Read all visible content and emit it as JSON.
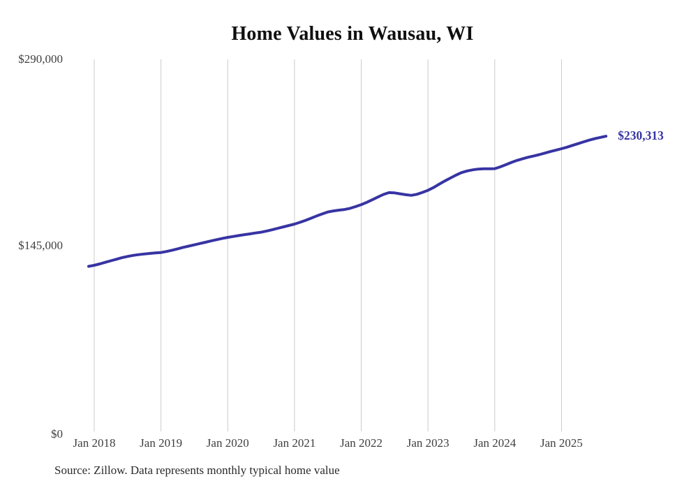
{
  "title": "Home Values in Wausau, WI",
  "source_note": "Source: Zillow. Data represents monthly typical home value",
  "colors": {
    "line": "#3734a3",
    "grid": "#cbcbcb",
    "title_text": "#0f0f0f",
    "axis_text": "#3f3f3f",
    "end_label_text": "#3734a3",
    "source_text": "#2a2a2a",
    "background": "#ffffff"
  },
  "chart_data": {
    "type": "line",
    "title": "Home Values in Wausau, WI",
    "xlabel": "",
    "ylabel": "",
    "ylim": [
      0,
      290000
    ],
    "y_ticks": [
      0,
      145000,
      290000
    ],
    "y_tick_labels": [
      "$0",
      "$145,000",
      "$290,000"
    ],
    "x_tick_labels": [
      "Jan 2018",
      "Jan 2019",
      "Jan 2020",
      "Jan 2021",
      "Jan 2022",
      "Jan 2023",
      "Jan 2024",
      "Jan 2025"
    ],
    "x_start": "Dec 2017",
    "x_end": "Sep 2025",
    "x_offset_months": -1,
    "grid": "vertical-only",
    "legend": "none",
    "last_value": 230313,
    "last_value_label": "$230,313",
    "series": [
      {
        "name": "Typical home value",
        "values": [
          129300,
          130100,
          131200,
          132400,
          133600,
          134800,
          136000,
          137000,
          137800,
          138400,
          138900,
          139300,
          139700,
          140000,
          140800,
          141800,
          142900,
          144000,
          145000,
          146000,
          147000,
          148000,
          149000,
          150000,
          150900,
          151800,
          152500,
          153200,
          153900,
          154500,
          155200,
          155800,
          156700,
          157700,
          158800,
          159900,
          161000,
          162100,
          163500,
          165000,
          166700,
          168400,
          170000,
          171500,
          172300,
          172900,
          173400,
          174300,
          175700,
          177200,
          179000,
          181000,
          183100,
          185100,
          186500,
          186300,
          185600,
          184900,
          184400,
          185200,
          186700,
          188300,
          190500,
          193000,
          195500,
          197800,
          200000,
          202000,
          203300,
          204200,
          204800,
          205000,
          205000,
          205100,
          206500,
          208200,
          210000,
          211500,
          212800,
          214000,
          215000,
          216000,
          217200,
          218400,
          219500,
          220600,
          221800,
          223200,
          224600,
          226000,
          227300,
          228400,
          229400,
          230313
        ]
      }
    ]
  }
}
